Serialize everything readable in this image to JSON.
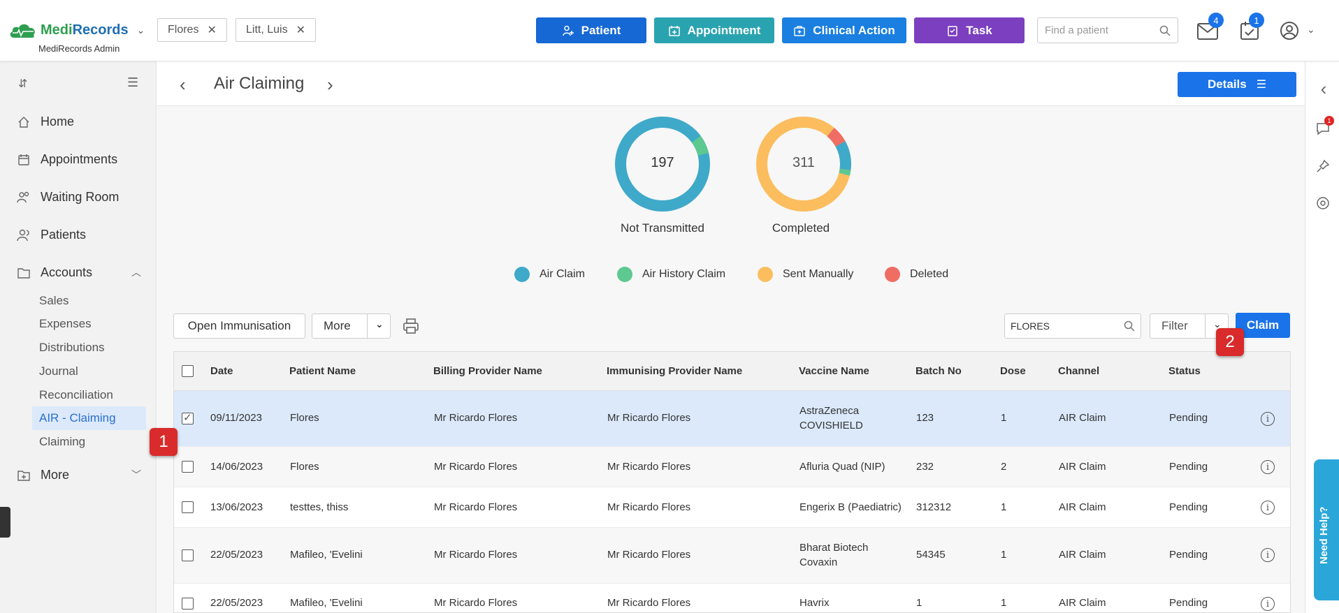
{
  "app": {
    "brand_part1": "Medi",
    "brand_part2": "Records",
    "subtitle": "MediRecords Admin"
  },
  "patient_tabs": [
    {
      "label": "Flores"
    },
    {
      "label": "Litt, Luis"
    }
  ],
  "top_actions": {
    "patient": "Patient",
    "appointment": "Appointment",
    "clinical_action": "Clinical Action",
    "task": "Task",
    "search_placeholder": "Find a patient",
    "mail_count": "4",
    "calendar_count": "1"
  },
  "colors": {
    "patient_btn": "#1668d4",
    "appointment_btn": "#2aa3b0",
    "clinical_btn": "#1a7fe0",
    "task_btn": "#7b3fbf",
    "air_claim": "#3fa9c9",
    "air_history_claim": "#5dc890",
    "sent_manually": "#fbbd5e",
    "deleted": "#ef6d63"
  },
  "sidebar": {
    "items": [
      {
        "label": "Home",
        "icon": "home-icon"
      },
      {
        "label": "Appointments",
        "icon": "calendar-icon"
      },
      {
        "label": "Waiting Room",
        "icon": "people-icon"
      },
      {
        "label": "Patients",
        "icon": "patients-icon"
      },
      {
        "label": "Accounts",
        "icon": "folder-icon"
      },
      {
        "label": "More",
        "icon": "add-folder-icon"
      }
    ],
    "accounts_sub": [
      "Sales",
      "Expenses",
      "Distributions",
      "Journal",
      "Reconciliation",
      "AIR - Claiming",
      "Claiming"
    ]
  },
  "page": {
    "title": "Air Claiming",
    "details_label": "Details"
  },
  "summary": {
    "not_transmitted": {
      "count": "197",
      "label": "Not Transmitted"
    },
    "completed": {
      "count": "311",
      "label": "Completed"
    },
    "legend": [
      "Air Claim",
      "Air History Claim",
      "Sent Manually",
      "Deleted"
    ]
  },
  "toolbar": {
    "open_immunisation": "Open Immunisation",
    "more": "More",
    "search_value": "FLORES",
    "filter": "Filter",
    "claim": "Claim"
  },
  "markers": [
    "1",
    "2"
  ],
  "table": {
    "columns": [
      "Date",
      "Patient Name",
      "Billing Provider Name",
      "Immunising Provider Name",
      "Vaccine Name",
      "Batch No",
      "Dose",
      "Channel",
      "Status"
    ],
    "rows": [
      {
        "date": "09/11/2023",
        "patient": "Flores",
        "billing": "Mr Ricardo Flores",
        "immunising": "Mr Ricardo Flores",
        "vaccine": "AstraZeneca COVISHIELD",
        "batch": "123",
        "dose": "1",
        "channel": "AIR Claim",
        "status": "Pending"
      },
      {
        "date": "14/06/2023",
        "patient": "Flores",
        "billing": "Mr Ricardo Flores",
        "immunising": "Mr Ricardo Flores",
        "vaccine": "Afluria Quad (NIP)",
        "batch": "232",
        "dose": "2",
        "channel": "AIR Claim",
        "status": "Pending"
      },
      {
        "date": "13/06/2023",
        "patient": "testtes, thiss",
        "billing": "Mr Ricardo Flores",
        "immunising": "Mr Ricardo Flores",
        "vaccine": "Engerix B (Paediatric)",
        "batch": "312312",
        "dose": "1",
        "channel": "AIR Claim",
        "status": "Pending"
      },
      {
        "date": "22/05/2023",
        "patient": "Mafileo, 'Evelini",
        "billing": "Mr Ricardo Flores",
        "immunising": "Mr Ricardo Flores",
        "vaccine": "Bharat Biotech Covaxin",
        "batch": "54345",
        "dose": "1",
        "channel": "AIR Claim",
        "status": "Pending"
      },
      {
        "date": "22/05/2023",
        "patient": "Mafileo, 'Evelini",
        "billing": "Mr Ricardo Flores",
        "immunising": "Mr Ricardo Flores",
        "vaccine": "Havrix",
        "batch": "1",
        "dose": "1",
        "channel": "AIR Claim",
        "status": "Pending"
      }
    ]
  },
  "help": {
    "label": "Need Help?"
  },
  "rail": {
    "chat_count": "1"
  }
}
